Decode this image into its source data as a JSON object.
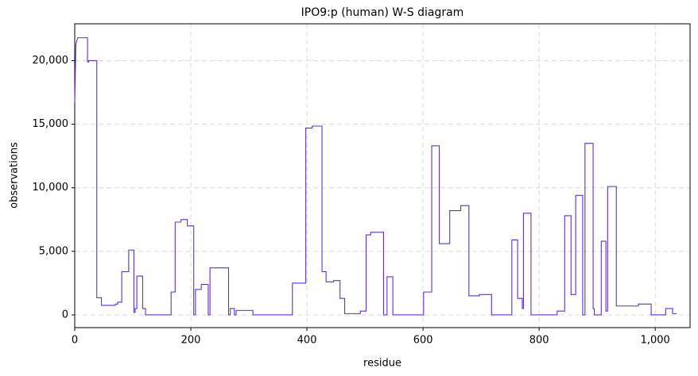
{
  "chart_data": {
    "type": "line",
    "title": "IPO9:p (human) W-S diagram",
    "x_label": "residue",
    "y_label": "observations",
    "xlim": [
      0,
      1060
    ],
    "ylim": [
      -1000,
      22900
    ],
    "xticks": [
      0,
      200,
      400,
      600,
      800,
      {
        "value": 1000,
        "label": "1,000"
      }
    ],
    "yticks": [
      0,
      {
        "value": 5000,
        "label": "5,000"
      },
      {
        "value": 10000,
        "label": "10,000"
      },
      {
        "value": 15000,
        "label": "15,000"
      },
      {
        "value": 20000,
        "label": "20,000"
      }
    ],
    "grid": true,
    "series": [
      {
        "color": "#5f2fd6",
        "x": [
          0,
          2,
          5,
          22,
          22,
          24,
          24,
          38,
          38,
          46,
          46,
          70,
          70,
          74,
          74,
          81,
          81,
          93,
          93,
          102,
          102,
          104,
          104,
          107,
          107,
          117,
          117,
          122,
          122,
          166,
          166,
          173,
          173,
          183,
          183,
          194,
          194,
          205,
          205,
          208,
          208,
          218,
          218,
          230,
          230,
          233,
          233,
          265,
          265,
          268,
          268,
          275,
          275,
          278,
          278,
          307,
          307,
          375,
          375,
          398,
          398,
          409,
          409,
          426,
          426,
          433,
          433,
          446,
          446,
          457,
          457,
          465,
          465,
          492,
          492,
          502,
          502,
          510,
          510,
          532,
          532,
          538,
          538,
          548,
          548,
          601,
          601,
          615,
          615,
          628,
          628,
          646,
          646,
          665,
          665,
          679,
          679,
          697,
          697,
          718,
          718,
          753,
          753,
          763,
          763,
          771,
          771,
          773,
          773,
          786,
          786,
          831,
          831,
          844,
          844,
          855,
          855,
          863,
          863,
          875,
          875,
          879,
          879,
          893,
          893,
          895,
          895,
          907,
          907,
          915,
          915,
          918,
          918,
          933,
          933,
          971,
          971,
          993,
          993,
          1018,
          1018,
          1030,
          1030,
          1037
        ],
        "values": [
          16700,
          21300,
          21800,
          21800,
          19900,
          19900,
          20000,
          20000,
          1350,
          1350,
          750,
          750,
          850,
          850,
          1000,
          1000,
          3400,
          3400,
          5100,
          5100,
          200,
          200,
          500,
          500,
          3050,
          3050,
          500,
          500,
          0,
          0,
          1800,
          1800,
          7300,
          7300,
          7500,
          7500,
          7000,
          7000,
          0,
          0,
          2000,
          2000,
          2400,
          2400,
          0,
          0,
          3700,
          3700,
          0,
          0,
          500,
          500,
          0,
          0,
          350,
          350,
          0,
          0,
          2500,
          2500,
          14700,
          14700,
          14850,
          14850,
          3400,
          3400,
          2600,
          2600,
          2700,
          2700,
          1300,
          1300,
          100,
          100,
          300,
          300,
          6300,
          6300,
          6500,
          6500,
          0,
          0,
          3000,
          3000,
          0,
          0,
          1800,
          1800,
          13300,
          13300,
          5600,
          5600,
          8200,
          8200,
          8600,
          8600,
          1500,
          1500,
          1600,
          1600,
          0,
          0,
          5900,
          5900,
          1300,
          1300,
          500,
          500,
          8000,
          8000,
          0,
          0,
          300,
          300,
          7800,
          7800,
          1600,
          1600,
          9400,
          9400,
          0,
          0,
          13500,
          13500,
          500,
          500,
          0,
          0,
          5800,
          5800,
          300,
          300,
          10100,
          10100,
          700,
          700,
          850,
          850,
          0,
          0,
          500,
          500,
          100,
          100
        ]
      }
    ]
  }
}
